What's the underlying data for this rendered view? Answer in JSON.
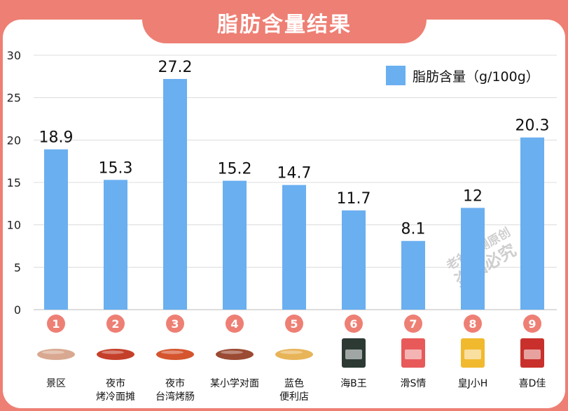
{
  "title": "脂肪含量结果",
  "colors": {
    "background": "#ee7f74",
    "bar": "#6aaff0",
    "badge": "#ee7f74",
    "panel": "#ffffff"
  },
  "watermark": [
    "老爸评测原创",
    "盗图必究"
  ],
  "chart_data": {
    "type": "bar",
    "legend": "脂肪含量（g/100g）",
    "legend_position": "top-right",
    "ylim": [
      0,
      30
    ],
    "yticks": [
      "0",
      "5",
      "10",
      "15",
      "20",
      "25",
      "30"
    ],
    "grid": true,
    "categories": [
      {
        "num": "1",
        "line1": "景区",
        "line2": ""
      },
      {
        "num": "2",
        "line1": "夜市",
        "line2": "烤冷面摊"
      },
      {
        "num": "3",
        "line1": "夜市",
        "line2": "台湾烤肠"
      },
      {
        "num": "4",
        "line1": "某小学对面",
        "line2": ""
      },
      {
        "num": "5",
        "line1": "蓝色",
        "line2": "便利店"
      },
      {
        "num": "6",
        "line1": "海B王",
        "line2": ""
      },
      {
        "num": "7",
        "line1": "滑S情",
        "line2": ""
      },
      {
        "num": "8",
        "line1": "皇J小H",
        "line2": ""
      },
      {
        "num": "9",
        "line1": "喜D佳",
        "line2": ""
      }
    ],
    "values": [
      18.9,
      15.3,
      27.2,
      15.2,
      14.7,
      11.7,
      8.1,
      12,
      20.3
    ],
    "value_labels": [
      "18.9",
      "15.3",
      "27.2",
      "15.2",
      "14.7",
      "11.7",
      "8.1",
      "12",
      "20.3"
    ],
    "product_icons": [
      "sausage-icon",
      "sausage-icon",
      "sausage-icon",
      "sausage-icon",
      "sausage-icon",
      "package-icon",
      "package-icon",
      "package-icon",
      "package-icon"
    ]
  }
}
